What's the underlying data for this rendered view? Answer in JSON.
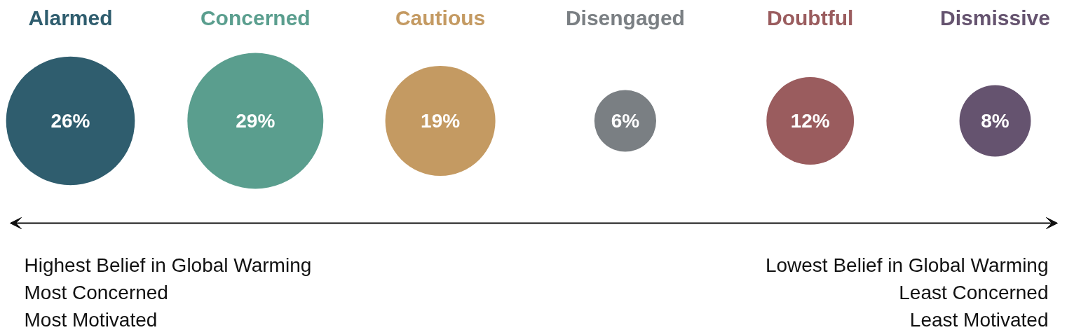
{
  "chart_data": {
    "type": "other",
    "categories": [
      "Alarmed",
      "Concerned",
      "Cautious",
      "Disengaged",
      "Doubtful",
      "Dismissive"
    ],
    "values": [
      26,
      29,
      19,
      6,
      12,
      8
    ],
    "value_labels": [
      "26%",
      "29%",
      "19%",
      "6%",
      "12%",
      "8%"
    ],
    "colors": [
      "#2f5d6e",
      "#5a9e8e",
      "#c49a62",
      "#7a7f83",
      "#9a5c5e",
      "#65536f"
    ],
    "annotations": [
      "Highest Belief in Global Warming",
      "Most Concerned",
      "Most Motivated",
      "Lowest Belief in Global Warming",
      "Least Concerned",
      "Least Motivated"
    ]
  }
}
